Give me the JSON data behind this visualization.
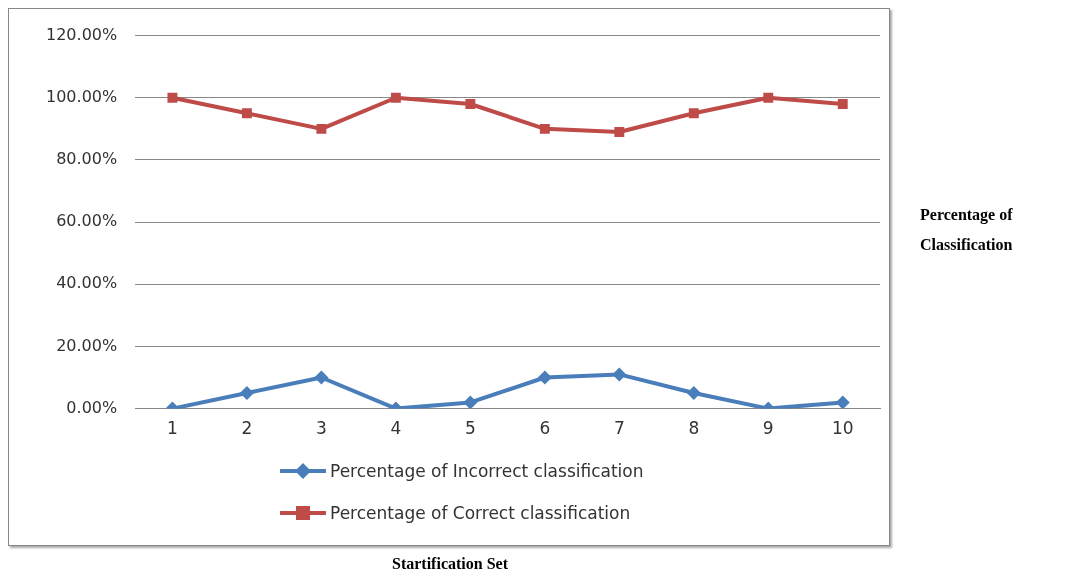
{
  "chart_data": {
    "type": "line",
    "annotations": [
      "Startification Set"
    ],
    "ylabel": "Percentage of Classification",
    "categories": [
      "1",
      "2",
      "3",
      "4",
      "5",
      "6",
      "7",
      "8",
      "9",
      "10"
    ],
    "series": [
      {
        "name": "Percentage of Incorrect classification",
        "color": "#4a7ebb",
        "marker": "diamond",
        "values": [
          0,
          5,
          10,
          0,
          2,
          10,
          11,
          5,
          0,
          2
        ]
      },
      {
        "name": "Percentage of Correct classification",
        "color": "#be4b48",
        "marker": "square",
        "values": [
          100,
          95,
          90,
          100,
          98,
          90,
          89,
          95,
          100,
          98
        ]
      }
    ],
    "ylim": [
      0,
      120
    ],
    "yticks": [
      {
        "value": 0,
        "label": "0.00%"
      },
      {
        "value": 20,
        "label": "20.00%"
      },
      {
        "value": 40,
        "label": "40.00%"
      },
      {
        "value": 60,
        "label": "60.00%"
      },
      {
        "value": 80,
        "label": "80.00%"
      },
      {
        "value": 100,
        "label": "100.00%"
      },
      {
        "value": 120,
        "label": "120.00%"
      }
    ],
    "grid": "y",
    "legend": "bottom",
    "line_style": "solid"
  }
}
